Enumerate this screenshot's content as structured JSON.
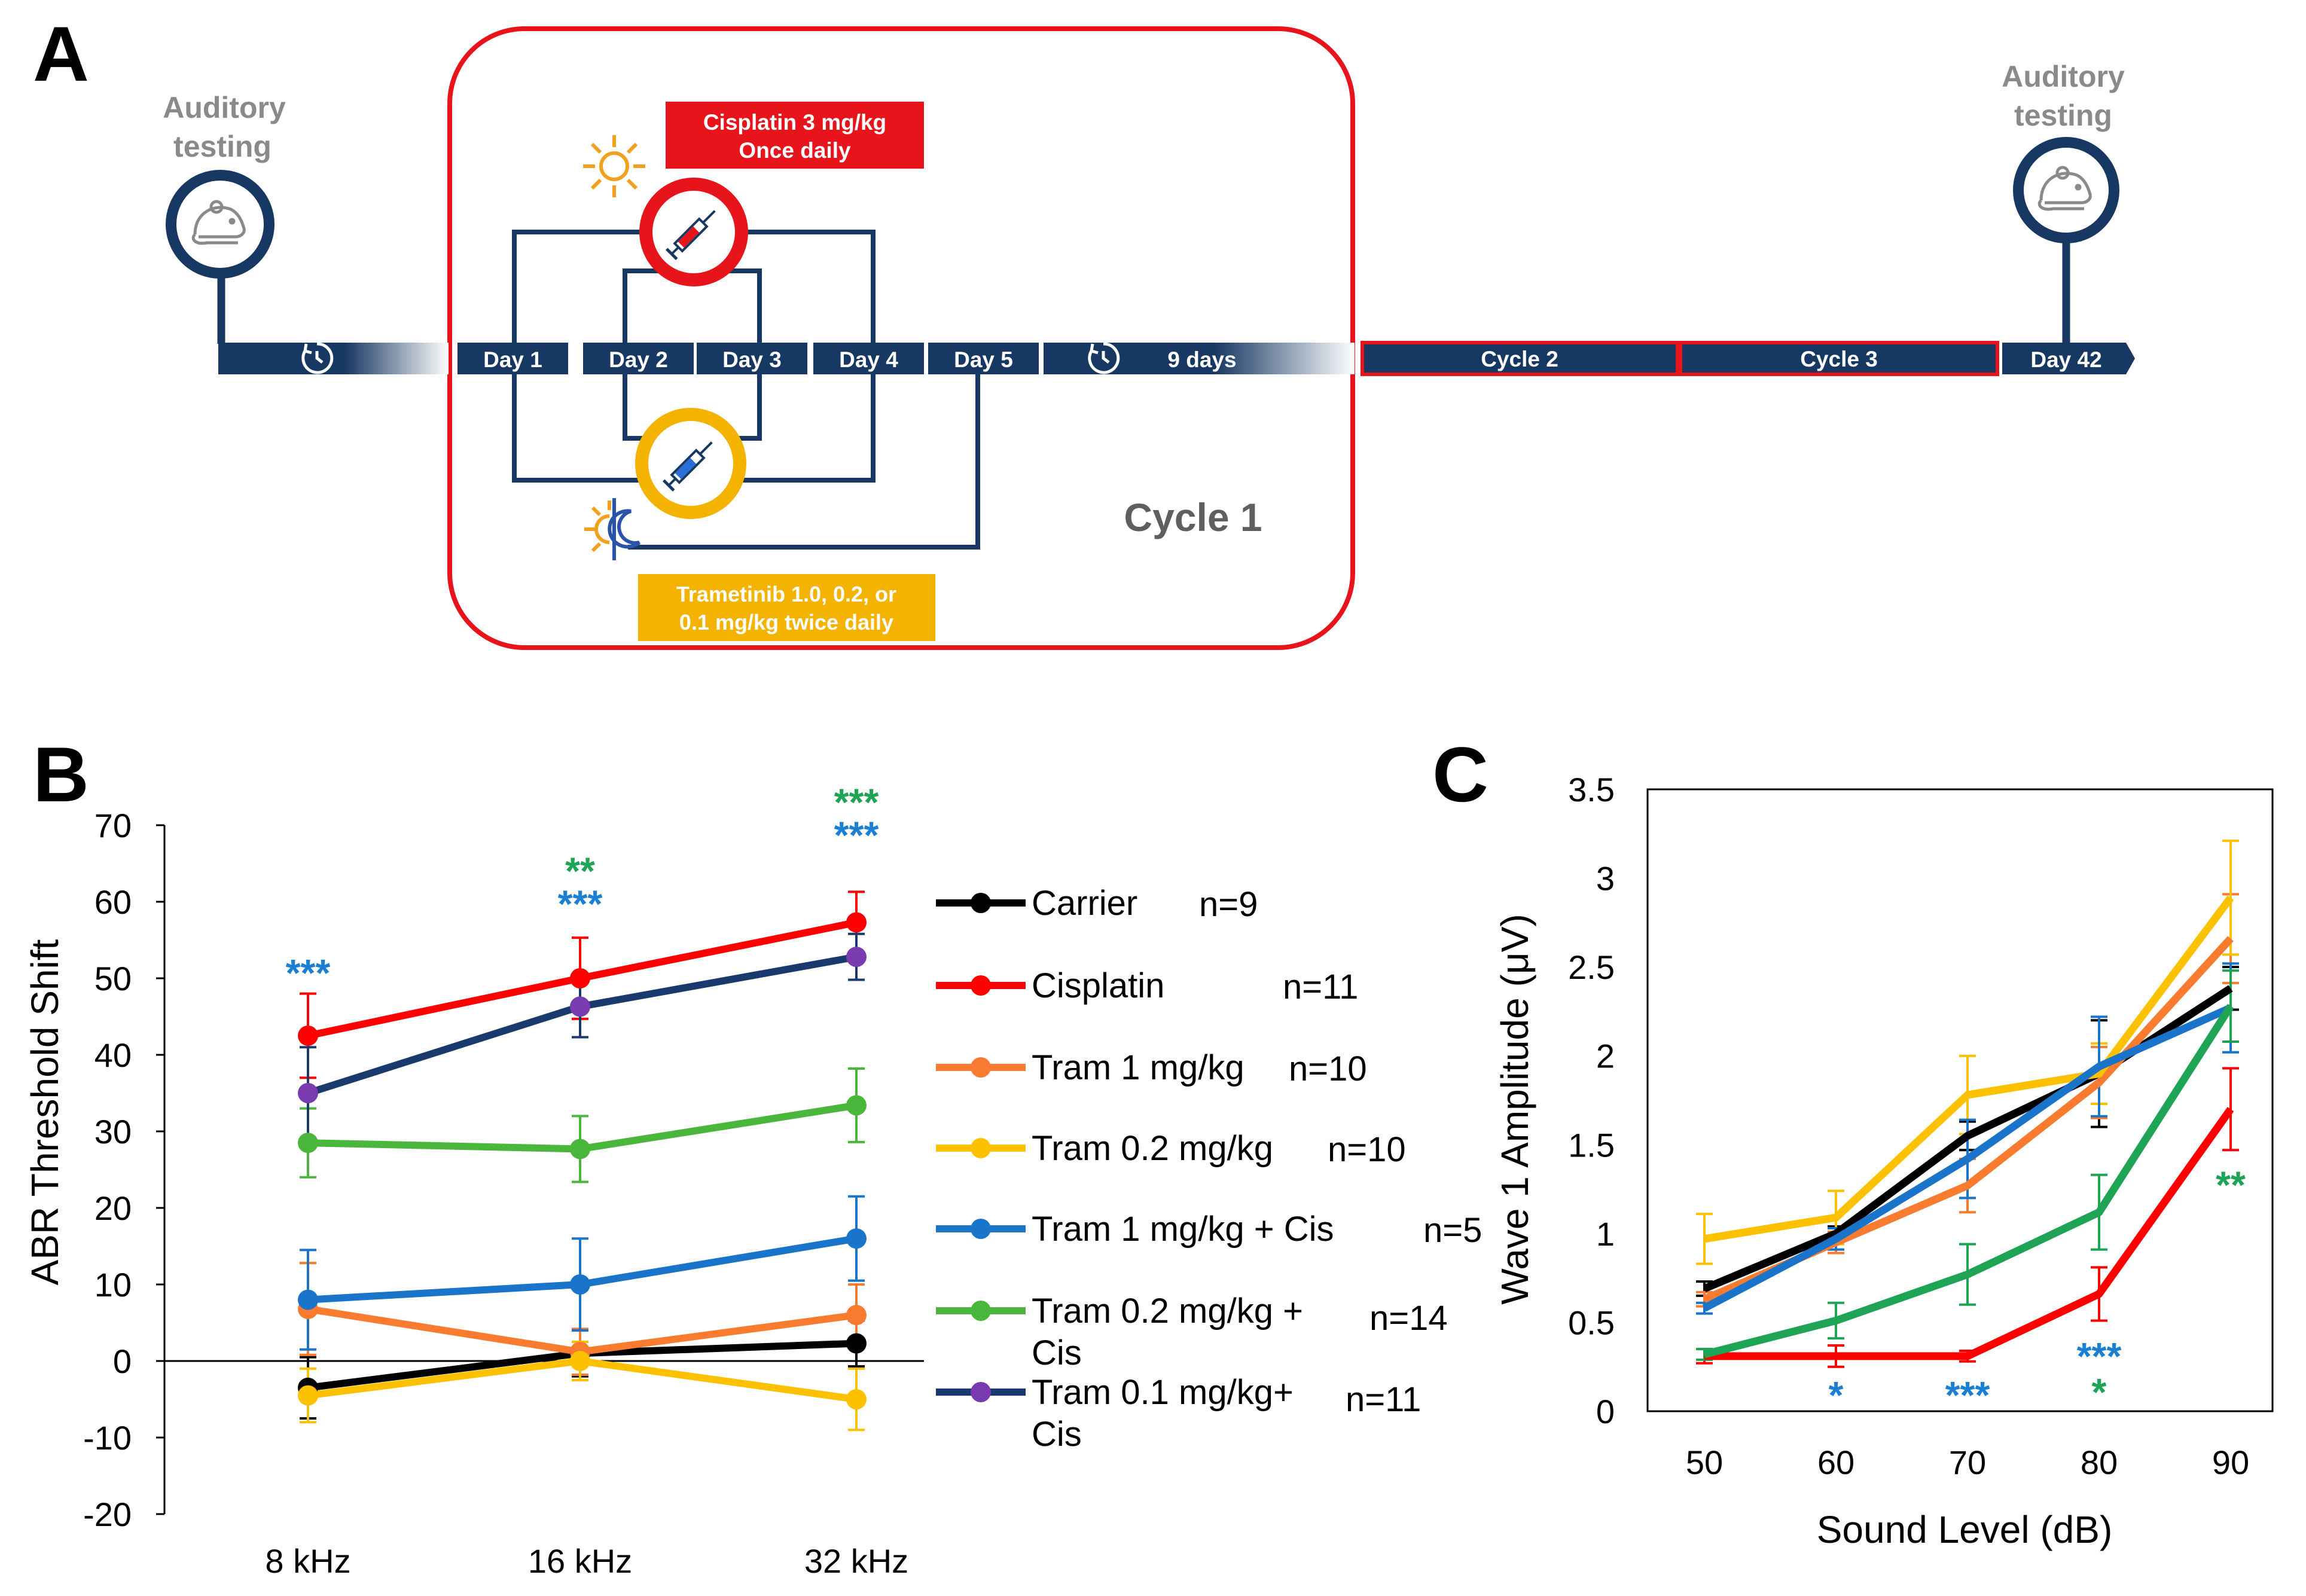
{
  "colors": {
    "navy": "#173862",
    "red": "#e8141c",
    "gold": "#f5b301",
    "grey": "#8a8a8a",
    "cycle_text": "#5f5f5f",
    "sun": "#f0a11e",
    "moon": "#2b54a8",
    "white": "#ffffff"
  },
  "panel_a": {
    "panel_label": "A",
    "auditory_testing_start": [
      "Auditory",
      "testing"
    ],
    "auditory_testing_end": [
      "Auditory",
      "testing"
    ],
    "days": [
      "Day 1",
      "Day 2",
      "Day 3",
      "Day 4",
      "Day 5"
    ],
    "rest_label": "9 days",
    "cycle_boxes": [
      "Cycle 2",
      "Cycle 3"
    ],
    "final_day": "Day 42",
    "cycle_label": "Cycle 1",
    "cisplatin_box": [
      "Cisplatin 3 mg/kg",
      "Once daily"
    ],
    "trametinib_box": [
      "Trametinib 1.0, 0.2, or",
      "0.1 mg/kg twice daily"
    ],
    "icons": [
      "mouse-icon",
      "clock-icon",
      "sun-icon",
      "syringe-icon",
      "sun-moon-icon"
    ]
  },
  "chart_data": [
    {
      "panel_label": "B",
      "type": "line",
      "title": "",
      "xlabel": "",
      "ylabel": "ABR Threshold Shift",
      "categories": [
        "8 kHz",
        "16 kHz",
        "32 kHz"
      ],
      "ylim": [
        -20,
        70
      ],
      "yticks": [
        -20,
        -10,
        0,
        10,
        20,
        30,
        40,
        50,
        60,
        70
      ],
      "yticklabels": [
        "-20",
        "-10",
        "0",
        "10",
        "20",
        "30",
        "40",
        "50",
        "60",
        "70"
      ],
      "legend_position": "right",
      "series": [
        {
          "name": "Carrier",
          "n": "n=9",
          "label_lines": [
            "Carrier"
          ],
          "color": "#000000",
          "values": [
            -3.5,
            1,
            2.3
          ],
          "errors": [
            4,
            3,
            3
          ]
        },
        {
          "name": "Cisplatin",
          "n": "n=11",
          "label_lines": [
            "Cisplatin"
          ],
          "color": "#ff0000",
          "values": [
            42.5,
            50,
            57.3
          ],
          "errors": [
            5.5,
            5.3,
            4
          ]
        },
        {
          "name": "Tram 1 mg/kg",
          "n": "n=10",
          "label_lines": [
            "Tram 1 mg/kg"
          ],
          "color": "#f97b2f",
          "values": [
            6.8,
            1.2,
            6
          ],
          "errors": [
            6,
            3,
            4
          ]
        },
        {
          "name": "Tram 0.2 mg/kg",
          "n": "n=10",
          "label_lines": [
            "Tram 0.2 mg/kg"
          ],
          "color": "#fcc200",
          "values": [
            -4.5,
            0,
            -5
          ],
          "errors": [
            3.5,
            2.5,
            4
          ]
        },
        {
          "name": "Tram 1 mg/kg + Cis",
          "n": "n=5",
          "label_lines": [
            "Tram 1 mg/kg + Cis"
          ],
          "color": "#1a74c9",
          "values": [
            8,
            10,
            16
          ],
          "errors": [
            6.5,
            6,
            5.5
          ]
        },
        {
          "name": "Tram 0.2 mg/kg + Cis",
          "n": "n=14",
          "label_lines": [
            "Tram 0.2 mg/kg +",
            "Cis"
          ],
          "color": "#4bb63c",
          "values": [
            28.5,
            27.7,
            33.4
          ],
          "errors": [
            4.5,
            4.3,
            4.8
          ]
        },
        {
          "name": "Tram 0.1 mg/kg+ Cis",
          "n": "n=11",
          "label_lines": [
            "Tram 0.1 mg/kg+",
            "Cis"
          ],
          "color": "#1a3a6e",
          "marker_color": "#7a3bb0",
          "values": [
            35,
            46.3,
            52.8
          ],
          "errors": [
            6,
            4,
            3
          ]
        }
      ],
      "annotations": [
        {
          "category": "8 kHz",
          "text": "***",
          "color": "#1b80d4",
          "row": 0
        },
        {
          "category": "16 kHz",
          "text": "***",
          "color": "#1b80d4",
          "row": 0
        },
        {
          "category": "16 kHz",
          "text": "**",
          "color": "#1fa355",
          "row": 1
        },
        {
          "category": "32 kHz",
          "text": "***",
          "color": "#1b80d4",
          "row": 0
        },
        {
          "category": "32 kHz",
          "text": "***",
          "color": "#1fa355",
          "row": 1
        }
      ]
    },
    {
      "panel_label": "C",
      "type": "line",
      "title": "",
      "xlabel": "Sound Level (dB)",
      "ylabel": "Wave 1 Amplitude (μV)",
      "x": [
        50,
        60,
        70,
        80,
        90
      ],
      "xticklabels": [
        "50",
        "60",
        "70",
        "80",
        "90"
      ],
      "ylim": [
        0,
        3.5
      ],
      "yticks": [
        0,
        0.5,
        1,
        1.5,
        2,
        2.5,
        3,
        3.5
      ],
      "yticklabels": [
        "0",
        "0.5",
        "1",
        "1.5",
        "2",
        "2.5",
        "3",
        "3.5"
      ],
      "series": [
        {
          "name": "Carrier",
          "color": "#000000",
          "values": [
            0.69,
            1.0,
            1.55,
            1.9,
            2.38
          ],
          "errors": [
            0.04,
            0.04,
            0.08,
            0.3,
            0.12
          ]
        },
        {
          "name": "Cisplatin",
          "color": "#ff0000",
          "values": [
            0.31,
            0.31,
            0.31,
            0.66,
            1.7
          ],
          "errors": [
            0.04,
            0.06,
            0.03,
            0.15,
            0.23
          ]
        },
        {
          "name": "Tram 1 mg/kg",
          "color": "#f97b2f",
          "values": [
            0.63,
            0.95,
            1.27,
            1.85,
            2.66
          ],
          "errors": [
            0.04,
            0.06,
            0.15,
            0.2,
            0.25
          ]
        },
        {
          "name": "Tram 0.2 mg/kg",
          "color": "#fcc200",
          "values": [
            0.97,
            1.09,
            1.78,
            1.9,
            2.89
          ],
          "errors": [
            0.14,
            0.15,
            0.22,
            0.17,
            0.32
          ]
        },
        {
          "name": "Tram 1 mg/kg + Cis",
          "color": "#1a74c9",
          "values": [
            0.58,
            0.97,
            1.42,
            1.94,
            2.27
          ],
          "errors": [
            0.03,
            0.06,
            0.22,
            0.28,
            0.25
          ]
        },
        {
          "name": "Tram 0.2 mg/kg + Cis",
          "color": "#1fa355",
          "values": [
            0.32,
            0.51,
            0.77,
            1.12,
            2.28
          ],
          "errors": [
            0.03,
            0.1,
            0.17,
            0.21,
            0.2
          ]
        }
      ],
      "annotations": [
        {
          "x": 60,
          "text": "*",
          "color": "#1b80d4",
          "row": 0
        },
        {
          "x": 70,
          "text": "***",
          "color": "#1b80d4",
          "row": 0
        },
        {
          "x": 80,
          "text": "***",
          "color": "#1b80d4",
          "row": 1
        },
        {
          "x": 80,
          "text": "*",
          "color": "#1fa355",
          "row": 0
        },
        {
          "x": 90,
          "text": "**",
          "color": "#1fa355",
          "row": 2
        }
      ]
    }
  ]
}
